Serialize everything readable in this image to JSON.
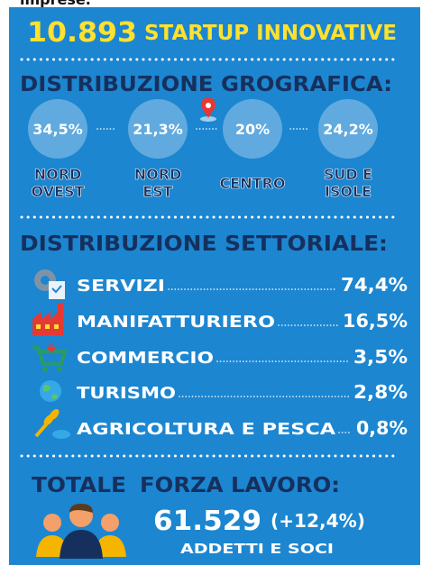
{
  "top_fragment": "imprese.",
  "headline": {
    "number": "10.893",
    "label": "STARTUP INNOVATIVE"
  },
  "geo": {
    "title": "DISTRIBUZIONE GROGRAFICA:",
    "regions": [
      {
        "value": "34,5%",
        "label": [
          "NORD",
          "OVEST"
        ]
      },
      {
        "value": "21,3%",
        "label": [
          "NORD",
          "EST"
        ]
      },
      {
        "value": "20%",
        "label": [
          "CENTRO"
        ]
      },
      {
        "value": "24,2%",
        "label": [
          "SUD E",
          "ISOLE"
        ]
      }
    ]
  },
  "sectors": {
    "title": "DISTRIBUZIONE SETTORIALE:",
    "items": [
      {
        "label": "SERVIZI",
        "value": "74,4%"
      },
      {
        "label": "MANIFATTURIERO",
        "value": "16,5%"
      },
      {
        "label": "COMMERCIO",
        "value": "3,5%"
      },
      {
        "label": "TURISMO",
        "value": "2,8%"
      },
      {
        "label": "AGRICOLTURA E PESCA",
        "value": "0,8%"
      }
    ]
  },
  "workforce": {
    "title_1": "TOTALE",
    "title_2": "FORZA LAVORO:",
    "number": "61.529",
    "change": "(+12,4%)",
    "caption": "ADDETTI E SOCI"
  }
}
